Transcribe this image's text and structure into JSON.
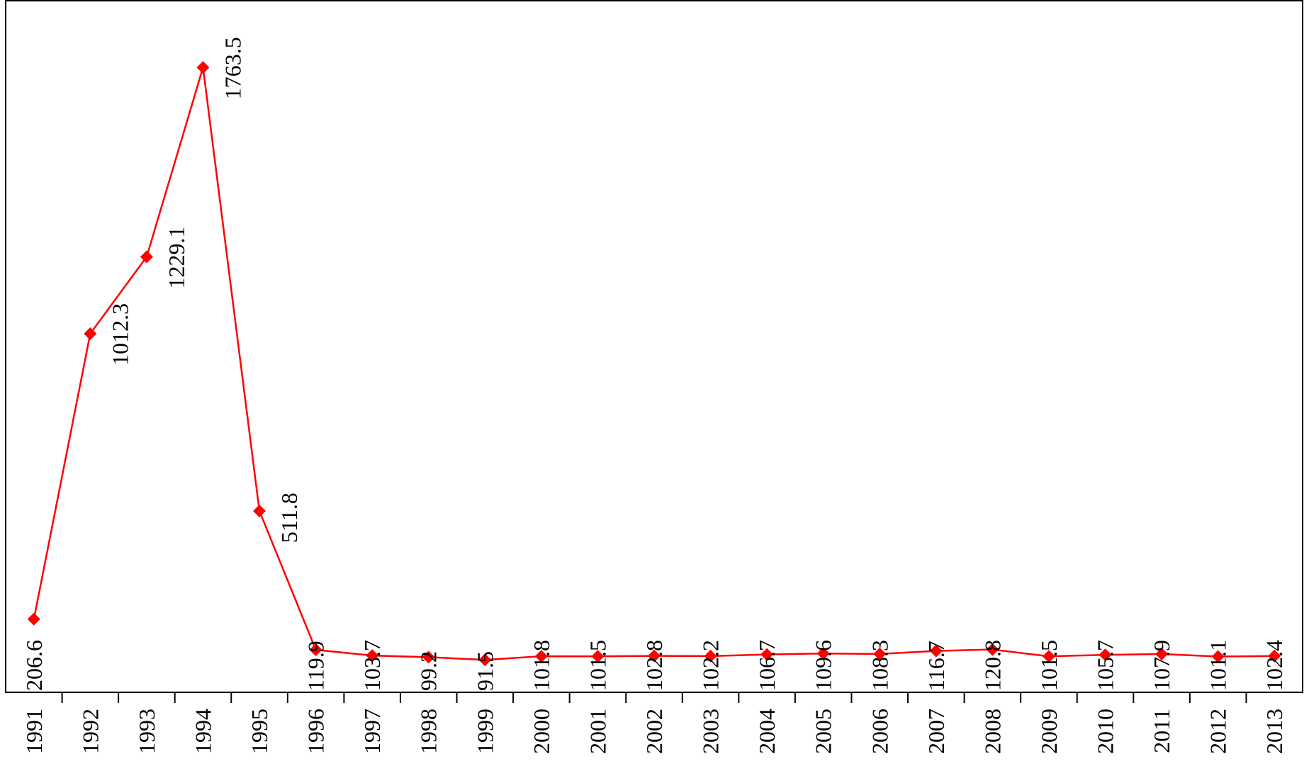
{
  "chart_data": {
    "type": "line",
    "title": "",
    "xlabel": "",
    "ylabel": "",
    "categories": [
      "1991",
      "1992",
      "1993",
      "1994",
      "1995",
      "1996",
      "1997",
      "1998",
      "1999",
      "2000",
      "2001",
      "2002",
      "2003",
      "2004",
      "2005",
      "2006",
      "2007",
      "2008",
      "2009",
      "2010",
      "2011",
      "2012",
      "2013"
    ],
    "series": [
      {
        "values": [
          206.6,
          1012.3,
          1229.1,
          1763.5,
          511.8,
          119.9,
          103.7,
          99.2,
          91.5,
          101.8,
          101.5,
          102.8,
          102.2,
          106.7,
          109.6,
          108.3,
          116.7,
          120.8,
          101.5,
          105.7,
          107.9,
          101.1,
          102.4
        ],
        "labels": [
          "206.6",
          "1012.3",
          "1229.1",
          "1763.5",
          "511.8",
          "119.9",
          "103.7",
          "99.2",
          "91.5",
          "101.8",
          "101.5",
          "102.8",
          "102.2",
          "106.7",
          "109.6",
          "108.3",
          "116.7",
          "120.8",
          "101.5",
          "105.7",
          "107.9",
          "101.1",
          "102.4"
        ],
        "color": "#ff0000"
      }
    ],
    "ylim": [
      0,
      2000
    ],
    "grid": false,
    "legend": "none",
    "label_orientation": "rotated-vertical"
  }
}
